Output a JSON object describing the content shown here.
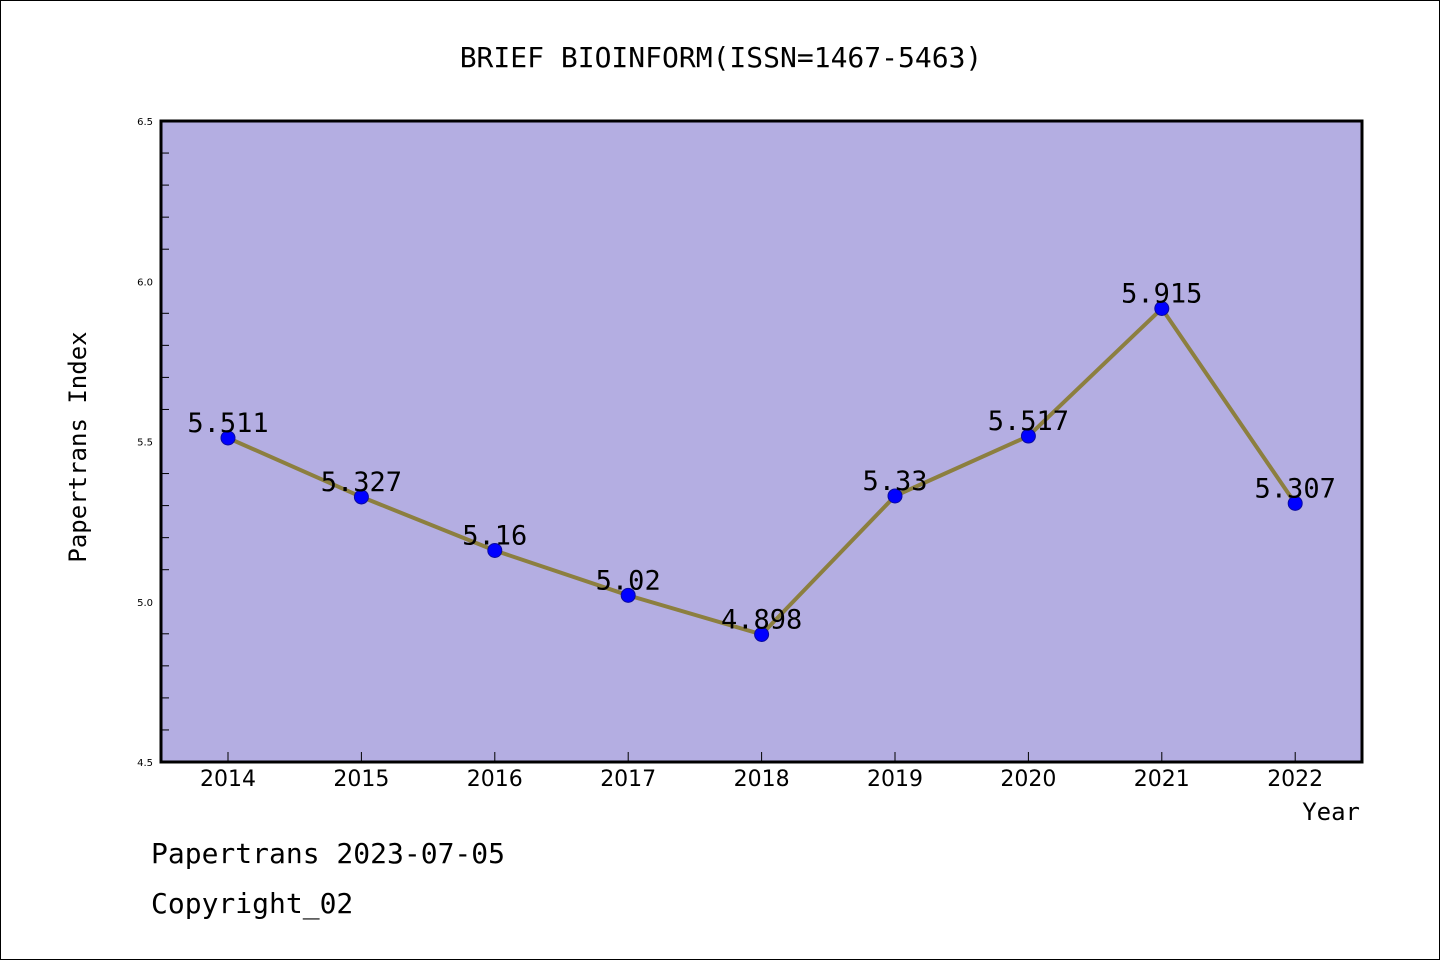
{
  "chart_data": {
    "type": "line",
    "title": "BRIEF BIOINFORM(ISSN=1467-5463)",
    "xlabel": "Year",
    "ylabel": "Papertrans Index",
    "categories": [
      "2014",
      "2015",
      "2016",
      "2017",
      "2018",
      "2019",
      "2020",
      "2021",
      "2022"
    ],
    "series": [
      {
        "values": [
          5.511,
          5.327,
          5.16,
          5.02,
          4.898,
          5.33,
          5.517,
          5.915,
          5.307
        ],
        "data_labels": [
          "5.511",
          "5.327",
          "5.16",
          "5.02",
          "4.898",
          "5.33",
          "5.517",
          "5.915",
          "5.307"
        ]
      }
    ],
    "ylim": [
      4.5,
      6.5
    ],
    "yticks": [
      "4.5",
      "5.0",
      "5.5",
      "6.0",
      "6.5"
    ],
    "grid": false,
    "colors": {
      "plot_background": "#b4aee2",
      "line": "#8c7f3f",
      "marker": "#0000ff",
      "marker_edge": "#0a0aa0"
    }
  },
  "footer": {
    "line1": "Papertrans 2023-07-05",
    "line2": "Copyright_02"
  }
}
